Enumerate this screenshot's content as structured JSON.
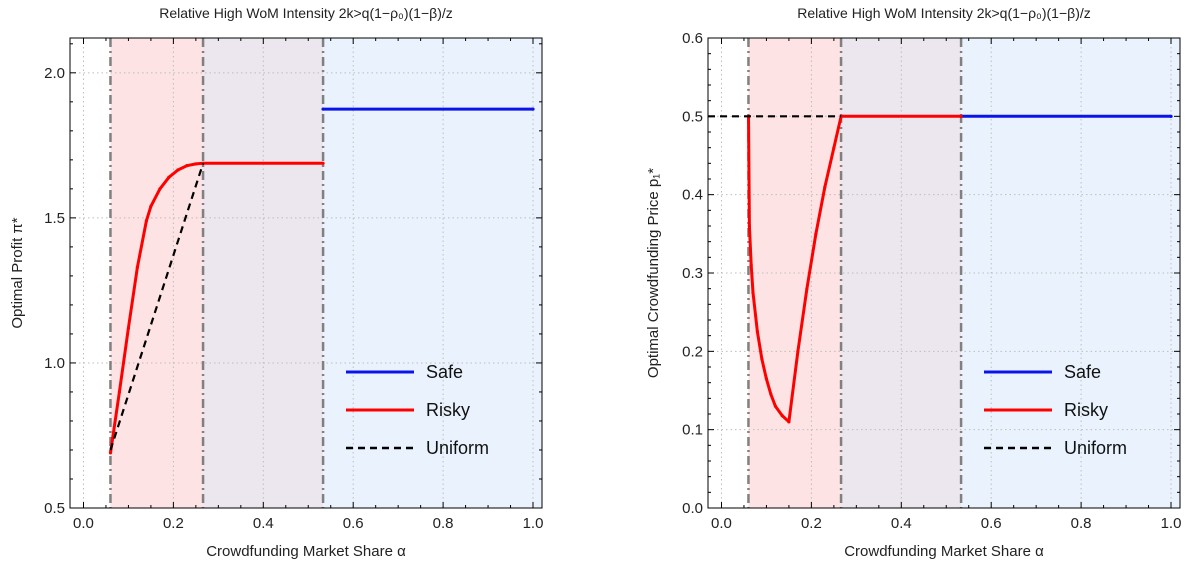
{
  "chart_data": [
    {
      "type": "line",
      "title": "Relative High WoM Intensity 2k>q(1−ρ₀)(1−β)/z",
      "xlabel": "Crowdfunding Market Share α",
      "ylabel": "Optimal Profit π*",
      "xlim": [
        -0.03,
        1.02
      ],
      "ylim": [
        0.5,
        2.12
      ],
      "xticks": [
        "0.0",
        "0.2",
        "0.4",
        "0.6",
        "0.8",
        "1.0"
      ],
      "xtick_values": [
        0,
        0.2,
        0.4,
        0.6,
        0.8,
        1.0
      ],
      "yticks": [
        "0.5",
        "1.0",
        "1.5",
        "2.0"
      ],
      "ytick_values": [
        0.5,
        1.0,
        1.5,
        2.0
      ],
      "grid": true,
      "legend_position": "bottom-right",
      "vlines": [
        0.06,
        0.266,
        0.533
      ],
      "regions": [
        {
          "from": 0.06,
          "to": 0.266,
          "color": "#fde3e3"
        },
        {
          "from": 0.266,
          "to": 0.533,
          "color": "#ece6ee"
        },
        {
          "from": 0.533,
          "to": 1.02,
          "color": "#eaf3fd"
        }
      ],
      "series": [
        {
          "name": "Safe",
          "color": "#0a14e8",
          "dash": "",
          "points": [
            [
              0.533,
              1.875
            ],
            [
              1.0,
              1.875
            ]
          ]
        },
        {
          "name": "Risky",
          "color": "#ff0000",
          "dash": "",
          "points": [
            [
              0.06,
              0.69
            ],
            [
              0.08,
              0.9
            ],
            [
              0.1,
              1.12
            ],
            [
              0.12,
              1.33
            ],
            [
              0.14,
              1.49
            ],
            [
              0.15,
              1.54
            ],
            [
              0.17,
              1.6
            ],
            [
              0.19,
              1.64
            ],
            [
              0.21,
              1.665
            ],
            [
              0.23,
              1.68
            ],
            [
              0.25,
              1.686
            ],
            [
              0.266,
              1.688
            ],
            [
              0.533,
              1.688
            ]
          ]
        },
        {
          "name": "Uniform",
          "color": "#000000",
          "dash": "7,5",
          "points": [
            [
              0.06,
              0.7
            ],
            [
              0.266,
              1.688
            ]
          ]
        }
      ]
    },
    {
      "type": "line",
      "title": "Relative High WoM Intensity 2k>q(1−ρ₀)(1−β)/z",
      "xlabel": "Crowdfunding Market Share α",
      "ylabel": "Optimal Crowdfunding Price p₁*",
      "xlim": [
        -0.03,
        1.02
      ],
      "ylim": [
        0.0,
        0.6
      ],
      "xticks": [
        "0.0",
        "0.2",
        "0.4",
        "0.6",
        "0.8",
        "1.0"
      ],
      "xtick_values": [
        0,
        0.2,
        0.4,
        0.6,
        0.8,
        1.0
      ],
      "yticks": [
        "0.0",
        "0.1",
        "0.2",
        "0.3",
        "0.4",
        "0.5",
        "0.6"
      ],
      "ytick_values": [
        0,
        0.1,
        0.2,
        0.3,
        0.4,
        0.5,
        0.6
      ],
      "grid": true,
      "legend_position": "bottom-right",
      "vlines": [
        0.06,
        0.266,
        0.533
      ],
      "regions": [
        {
          "from": 0.06,
          "to": 0.266,
          "color": "#fde3e3"
        },
        {
          "from": 0.266,
          "to": 0.533,
          "color": "#ece6ee"
        },
        {
          "from": 0.533,
          "to": 1.02,
          "color": "#eaf3fd"
        }
      ],
      "series": [
        {
          "name": "Safe",
          "color": "#0a14e8",
          "dash": "",
          "points": [
            [
              0.533,
              0.5
            ],
            [
              1.0,
              0.5
            ]
          ]
        },
        {
          "name": "Risky",
          "color": "#ff0000",
          "dash": "",
          "points": [
            [
              0.06,
              0.5
            ],
            [
              0.062,
              0.36
            ],
            [
              0.066,
              0.31
            ],
            [
              0.07,
              0.275
            ],
            [
              0.08,
              0.225
            ],
            [
              0.09,
              0.19
            ],
            [
              0.1,
              0.165
            ],
            [
              0.11,
              0.145
            ],
            [
              0.12,
              0.13
            ],
            [
              0.135,
              0.118
            ],
            [
              0.15,
              0.11
            ],
            [
              0.17,
              0.2
            ],
            [
              0.19,
              0.28
            ],
            [
              0.21,
              0.35
            ],
            [
              0.23,
              0.41
            ],
            [
              0.25,
              0.46
            ],
            [
              0.266,
              0.5
            ],
            [
              0.533,
              0.5
            ]
          ]
        },
        {
          "name": "Uniform",
          "color": "#000000",
          "dash": "7,5",
          "points": [
            [
              -0.03,
              0.5
            ],
            [
              0.266,
              0.5
            ]
          ]
        }
      ]
    }
  ]
}
